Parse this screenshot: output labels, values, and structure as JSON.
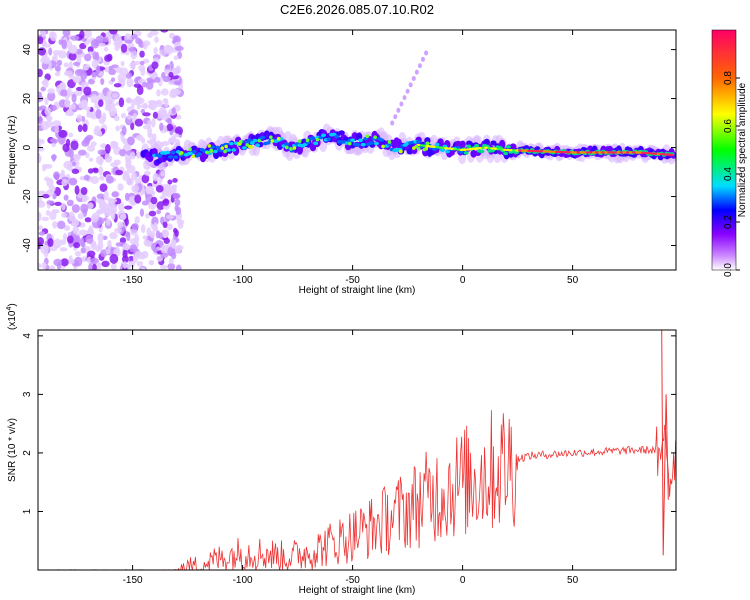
{
  "title": "C2E6.2026.085.07.10.R02",
  "chart_data": [
    {
      "type": "heatmap",
      "xlabel": "Height of straight line (km)",
      "ylabel": "Frequency (Hz)",
      "xlim": [
        -193,
        97
      ],
      "ylim": [
        -50,
        48
      ],
      "xticks": [
        -150,
        -100,
        -50,
        0,
        50
      ],
      "yticks": [
        -40,
        -20,
        0,
        20,
        40
      ],
      "colorbar": {
        "label": "Normalized spectral amplitude",
        "range": [
          0,
          1
        ],
        "ticks": [
          0.0,
          0.2,
          0.4,
          0.6,
          0.8
        ],
        "colors": [
          "#ffffff",
          "#cc88ff",
          "#8800ff",
          "#0000ff",
          "#00ddff",
          "#00ff00",
          "#ffff00",
          "#ff6600",
          "#ff0066"
        ]
      },
      "centerline": [
        [
          -140,
          -4
        ],
        [
          -120,
          -2
        ],
        [
          -100,
          1
        ],
        [
          -85,
          4
        ],
        [
          -78,
          0
        ],
        [
          -70,
          2
        ],
        [
          -60,
          5
        ],
        [
          -50,
          2
        ],
        [
          -40,
          3
        ],
        [
          -30,
          0
        ],
        [
          -20,
          1
        ],
        [
          -10,
          0
        ],
        [
          0,
          -1
        ],
        [
          10,
          0
        ],
        [
          20,
          -1
        ],
        [
          50,
          -2
        ],
        [
          80,
          -2
        ],
        [
          95,
          -3
        ]
      ],
      "noise_region_x": [
        -193,
        -128
      ]
    },
    {
      "type": "line",
      "xlabel": "Height of straight line (km)",
      "ylabel": "SNR (10 * v/v)",
      "multiplier": "(x10",
      "multiplier_exp": "4",
      "xlim": [
        -193,
        97
      ],
      "ylim": [
        0,
        4.1
      ],
      "xticks": [
        -150,
        -100,
        -50,
        0,
        50
      ],
      "yticks": [
        1,
        2,
        3,
        4
      ],
      "color": "#ee3333",
      "trend": [
        [
          -193,
          0.0
        ],
        [
          -130,
          0.0
        ],
        [
          -120,
          0.08
        ],
        [
          -110,
          0.2
        ],
        [
          -100,
          0.3
        ],
        [
          -90,
          0.28
        ],
        [
          -80,
          0.22
        ],
        [
          -70,
          0.3
        ],
        [
          -60,
          0.45
        ],
        [
          -50,
          0.6
        ],
        [
          -40,
          0.75
        ],
        [
          -30,
          0.95
        ],
        [
          -20,
          1.15
        ],
        [
          -10,
          1.35
        ],
        [
          0,
          1.5
        ],
        [
          10,
          1.65
        ],
        [
          20,
          1.8
        ],
        [
          25,
          1.9
        ],
        [
          30,
          1.95
        ],
        [
          50,
          2.0
        ],
        [
          80,
          2.05
        ],
        [
          88,
          2.05
        ],
        [
          90,
          1.6
        ],
        [
          92,
          2.6
        ],
        [
          94,
          1.5
        ],
        [
          97,
          2.1
        ]
      ],
      "spikes": [
        [
          90.5,
          4.1
        ],
        [
          91.2,
          0.25
        ],
        [
          92.5,
          3.0
        ],
        [
          93.5,
          1.2
        ]
      ]
    }
  ]
}
